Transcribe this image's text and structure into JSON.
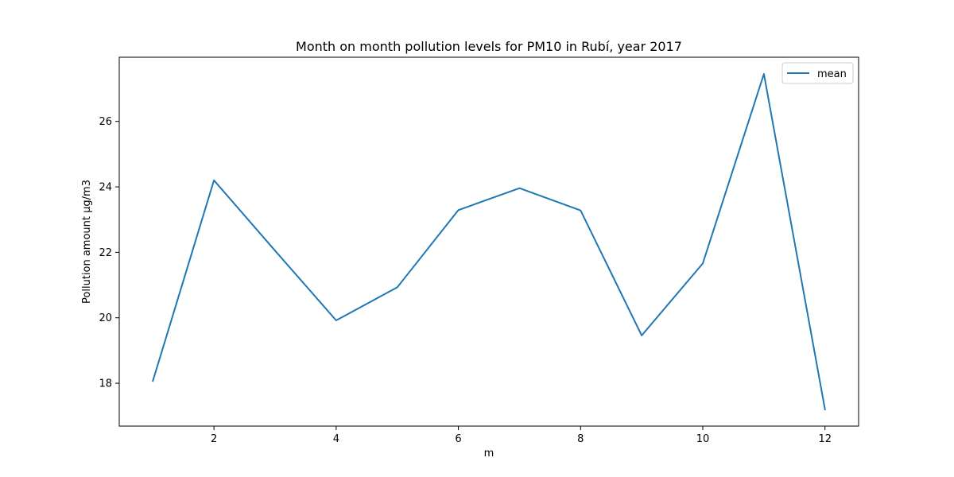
{
  "chart_data": {
    "type": "line",
    "title": "Month on month pollution levels for PM10 in Rubí, year 2017",
    "xlabel": "m",
    "ylabel": "Pollution amount µg/m3",
    "x": [
      1,
      2,
      3,
      4,
      5,
      6,
      7,
      8,
      9,
      10,
      11,
      12
    ],
    "series": [
      {
        "name": "mean",
        "color": "#1f77b4",
        "values": [
          18.07,
          24.2,
          22.05,
          19.92,
          20.93,
          23.29,
          23.96,
          23.28,
          19.46,
          21.66,
          27.45,
          17.2
        ]
      }
    ],
    "xlim": [
      0.45,
      12.55
    ],
    "ylim": [
      16.69,
      27.96
    ],
    "xticks": [
      2,
      4,
      6,
      8,
      10,
      12
    ],
    "yticks": [
      18,
      20,
      22,
      24,
      26
    ],
    "grid": false,
    "legend_position": "top-right"
  }
}
